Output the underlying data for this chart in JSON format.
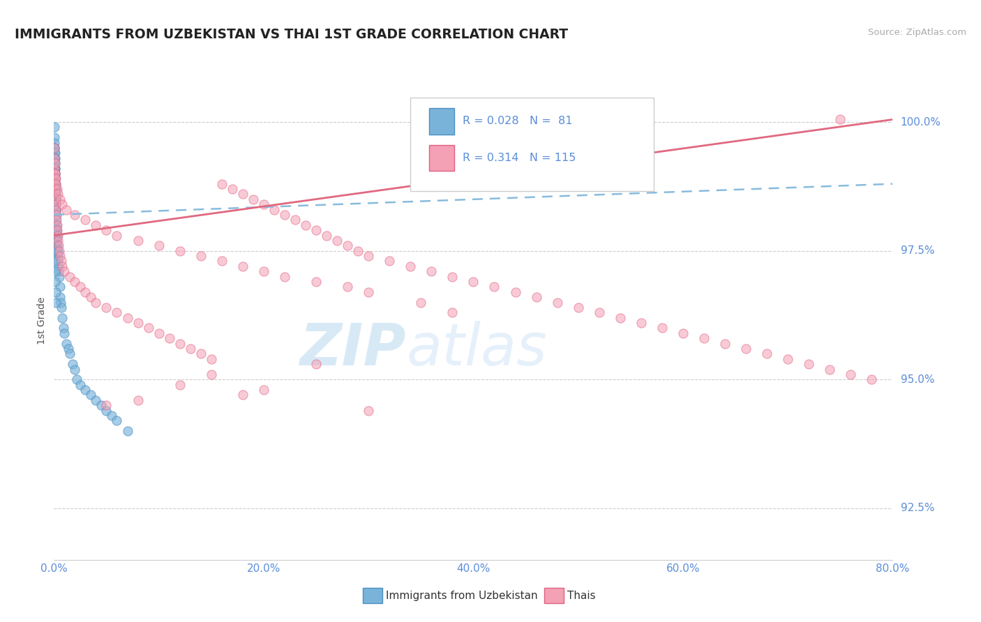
{
  "title": "IMMIGRANTS FROM UZBEKISTAN VS THAI 1ST GRADE CORRELATION CHART",
  "source_text": "Source: ZipAtlas.com",
  "ylabel": "1st Grade",
  "legend_labels": [
    "Immigrants from Uzbekistan",
    "Thais"
  ],
  "R_uzbek": 0.028,
  "N_uzbek": 81,
  "R_thai": 0.314,
  "N_thai": 115,
  "blue_color": "#7ab3d9",
  "pink_color": "#f4a0b5",
  "blue_edge": "#4a90c4",
  "pink_edge": "#e06080",
  "xmin": 0.0,
  "xmax": 80.0,
  "ymin": 91.5,
  "ymax": 100.8,
  "yticks": [
    92.5,
    95.0,
    97.5,
    100.0
  ],
  "xticks": [
    0.0,
    20.0,
    40.0,
    60.0,
    80.0
  ],
  "watermark_zip": "ZIP",
  "watermark_atlas": "atlas",
  "blue_trendline": [
    0.0,
    80.0,
    98.2,
    98.8
  ],
  "pink_trendline": [
    0.0,
    80.0,
    97.8,
    100.05
  ],
  "blue_scatter_x": [
    0.05,
    0.05,
    0.05,
    0.05,
    0.05,
    0.06,
    0.06,
    0.06,
    0.07,
    0.07,
    0.08,
    0.08,
    0.09,
    0.09,
    0.1,
    0.1,
    0.1,
    0.12,
    0.12,
    0.13,
    0.13,
    0.14,
    0.14,
    0.15,
    0.15,
    0.16,
    0.17,
    0.18,
    0.18,
    0.19,
    0.2,
    0.2,
    0.21,
    0.22,
    0.23,
    0.24,
    0.25,
    0.26,
    0.27,
    0.28,
    0.3,
    0.32,
    0.35,
    0.38,
    0.4,
    0.42,
    0.45,
    0.5,
    0.55,
    0.6,
    0.65,
    0.7,
    0.8,
    0.9,
    1.0,
    1.2,
    1.4,
    1.5,
    1.8,
    2.0,
    2.2,
    2.5,
    3.0,
    3.5,
    4.0,
    4.5,
    5.0,
    5.5,
    6.0,
    7.0,
    0.05,
    0.05,
    0.05,
    0.06,
    0.07,
    0.08,
    0.1,
    0.12,
    0.14,
    0.16,
    0.2
  ],
  "blue_scatter_y": [
    99.9,
    99.7,
    99.5,
    99.3,
    99.1,
    99.6,
    99.4,
    99.2,
    99.5,
    99.3,
    99.4,
    99.1,
    99.3,
    99.0,
    99.2,
    98.9,
    98.7,
    99.1,
    98.8,
    99.0,
    98.7,
    98.9,
    98.6,
    98.8,
    98.5,
    98.7,
    98.6,
    98.5,
    98.3,
    98.4,
    98.3,
    98.1,
    98.2,
    98.0,
    97.9,
    97.8,
    97.9,
    97.7,
    97.6,
    97.5,
    97.8,
    97.6,
    97.4,
    97.3,
    97.5,
    97.2,
    97.1,
    97.0,
    96.8,
    96.6,
    96.5,
    96.4,
    96.2,
    96.0,
    95.9,
    95.7,
    95.6,
    95.5,
    95.3,
    95.2,
    95.0,
    94.9,
    94.8,
    94.7,
    94.6,
    94.5,
    94.4,
    94.3,
    94.2,
    94.0,
    98.0,
    97.8,
    97.6,
    97.9,
    97.7,
    97.5,
    97.3,
    97.1,
    96.9,
    96.7,
    96.5
  ],
  "pink_scatter_x": [
    0.05,
    0.06,
    0.07,
    0.08,
    0.09,
    0.1,
    0.12,
    0.14,
    0.16,
    0.18,
    0.2,
    0.22,
    0.25,
    0.28,
    0.3,
    0.35,
    0.4,
    0.45,
    0.5,
    0.6,
    0.7,
    0.8,
    1.0,
    1.5,
    2.0,
    2.5,
    3.0,
    3.5,
    4.0,
    5.0,
    6.0,
    7.0,
    8.0,
    9.0,
    10.0,
    11.0,
    12.0,
    13.0,
    14.0,
    15.0,
    16.0,
    17.0,
    18.0,
    19.0,
    20.0,
    21.0,
    22.0,
    23.0,
    24.0,
    25.0,
    26.0,
    27.0,
    28.0,
    29.0,
    30.0,
    32.0,
    34.0,
    36.0,
    38.0,
    40.0,
    42.0,
    44.0,
    46.0,
    48.0,
    50.0,
    52.0,
    54.0,
    56.0,
    58.0,
    60.0,
    62.0,
    64.0,
    66.0,
    68.0,
    70.0,
    72.0,
    74.0,
    76.0,
    78.0,
    0.08,
    0.1,
    0.15,
    0.2,
    0.3,
    0.4,
    0.6,
    0.8,
    1.2,
    2.0,
    3.0,
    4.0,
    5.0,
    6.0,
    8.0,
    10.0,
    12.0,
    14.0,
    16.0,
    18.0,
    20.0,
    22.0,
    25.0,
    28.0,
    30.0,
    25.0,
    35.0,
    38.0,
    20.0,
    15.0,
    5.0,
    8.0,
    12.0,
    18.0,
    30.0,
    75.0
  ],
  "pink_scatter_y": [
    99.5,
    99.3,
    99.1,
    99.0,
    98.9,
    98.8,
    98.7,
    98.6,
    98.5,
    98.4,
    98.3,
    98.2,
    98.1,
    98.0,
    97.9,
    97.8,
    97.7,
    97.6,
    97.5,
    97.4,
    97.3,
    97.2,
    97.1,
    97.0,
    96.9,
    96.8,
    96.7,
    96.6,
    96.5,
    96.4,
    96.3,
    96.2,
    96.1,
    96.0,
    95.9,
    95.8,
    95.7,
    95.6,
    95.5,
    95.4,
    98.8,
    98.7,
    98.6,
    98.5,
    98.4,
    98.3,
    98.2,
    98.1,
    98.0,
    97.9,
    97.8,
    97.7,
    97.6,
    97.5,
    97.4,
    97.3,
    97.2,
    97.1,
    97.0,
    96.9,
    96.8,
    96.7,
    96.6,
    96.5,
    96.4,
    96.3,
    96.2,
    96.1,
    96.0,
    95.9,
    95.8,
    95.7,
    95.6,
    95.5,
    95.4,
    95.3,
    95.2,
    95.1,
    95.0,
    99.2,
    99.0,
    98.9,
    98.8,
    98.7,
    98.6,
    98.5,
    98.4,
    98.3,
    98.2,
    98.1,
    98.0,
    97.9,
    97.8,
    97.7,
    97.6,
    97.5,
    97.4,
    97.3,
    97.2,
    97.1,
    97.0,
    96.9,
    96.8,
    96.7,
    95.3,
    96.5,
    96.3,
    94.8,
    95.1,
    94.5,
    94.6,
    94.9,
    94.7,
    94.4,
    100.05
  ]
}
